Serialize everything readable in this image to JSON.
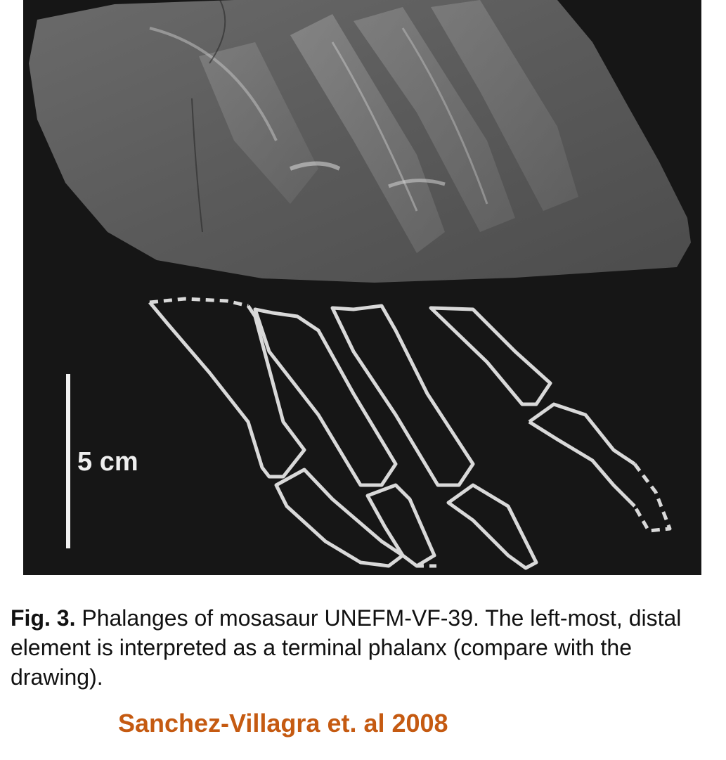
{
  "figure": {
    "scale_bar": {
      "label": "5 cm"
    }
  },
  "caption": {
    "label": "Fig. 3.",
    "text": "Phalanges of mosasaur UNEFM-VF-39. The left-most, distal element is interpreted as a terminal phalanx (compare with the drawing)."
  },
  "credit": "Sanchez-Villagra et. al 2008",
  "colors": {
    "panel_background": "#161616",
    "outline": "#d9d9d9",
    "credit": "#c55a11"
  }
}
